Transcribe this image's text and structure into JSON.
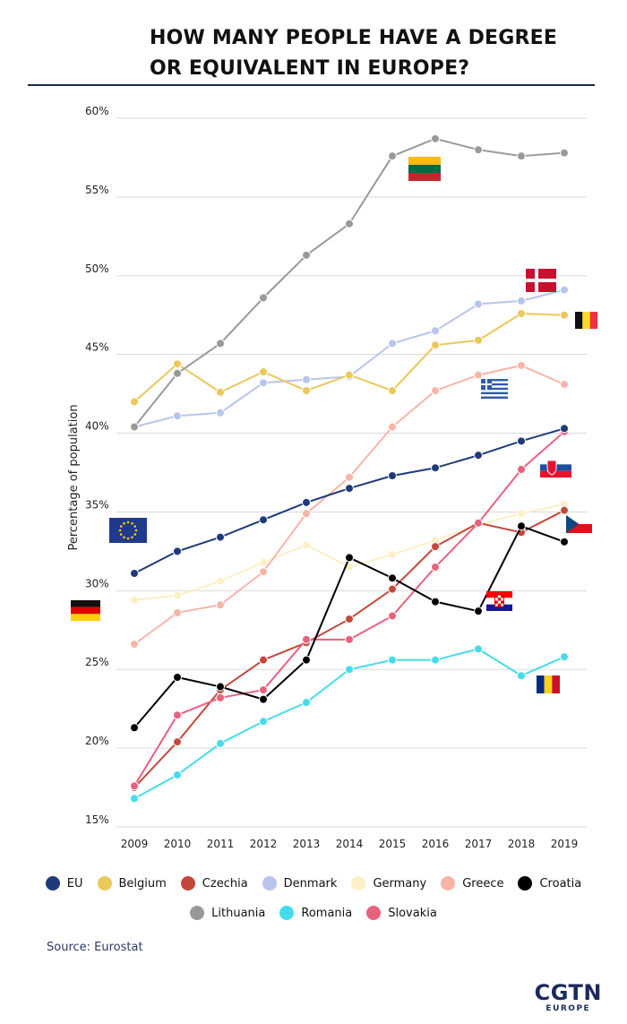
{
  "title_line1": "HOW MANY PEOPLE HAVE A DEGREE",
  "title_line2": "OR EQUIVALENT IN EUROPE?",
  "source": "Source: Eurostat",
  "logo": {
    "main": "CGTN",
    "sub": "EUROPE"
  },
  "chart_data": {
    "type": "line",
    "title": "HOW MANY PEOPLE HAVE A DEGREE OR EQUIVALENT IN EUROPE?",
    "xlabel": "",
    "ylabel": "Percentage of population",
    "x": [
      "2009",
      "2010",
      "2011",
      "2012",
      "2013",
      "2014",
      "2015",
      "2016",
      "2017",
      "2018",
      "2019"
    ],
    "ylim": [
      15,
      60
    ],
    "yticks": [
      "15%",
      "20%",
      "25%",
      "30%",
      "35%",
      "40%",
      "45%",
      "50%",
      "55%",
      "60%"
    ],
    "grid": true,
    "legend_position": "bottom",
    "series": [
      {
        "name": "EU",
        "color": "#1f3a7a",
        "flag": "eu-flag",
        "values": [
          31.1,
          32.5,
          33.4,
          34.5,
          35.6,
          36.5,
          37.3,
          37.8,
          38.6,
          39.5,
          40.3
        ]
      },
      {
        "name": "Belgium",
        "color": "#eac85a",
        "flag": "belgium-flag",
        "values": [
          42.0,
          44.4,
          42.6,
          43.9,
          42.7,
          43.7,
          42.7,
          45.6,
          45.9,
          47.6,
          47.5
        ]
      },
      {
        "name": "Czechia",
        "color": "#c4483a",
        "flag": "czechia-flag",
        "values": [
          17.5,
          20.4,
          23.7,
          25.6,
          26.7,
          28.2,
          30.1,
          32.8,
          34.3,
          33.7,
          35.1
        ]
      },
      {
        "name": "Denmark",
        "color": "#b8c4ec",
        "flag": "denmark-flag",
        "values": [
          40.4,
          41.1,
          41.3,
          43.2,
          43.4,
          43.6,
          45.7,
          46.5,
          48.2,
          48.4,
          49.1
        ]
      },
      {
        "name": "Germany",
        "color": "#fdefc6",
        "flag": "germany-flag",
        "values": [
          29.4,
          29.7,
          30.6,
          31.8,
          32.9,
          31.5,
          32.3,
          33.2,
          34.2,
          34.9,
          35.5
        ]
      },
      {
        "name": "Greece",
        "color": "#f7b5a8",
        "flag": "greece-flag",
        "values": [
          26.6,
          28.6,
          29.1,
          31.2,
          34.9,
          37.2,
          40.4,
          42.7,
          43.7,
          44.3,
          43.1
        ]
      },
      {
        "name": "Croatia",
        "color": "#000000",
        "flag": "croatia-flag",
        "values": [
          21.3,
          24.5,
          23.9,
          23.1,
          25.6,
          32.1,
          30.8,
          29.3,
          28.7,
          34.1,
          33.1
        ]
      },
      {
        "name": "Lithuania",
        "color": "#999999",
        "flag": "lithuania-flag",
        "values": [
          40.4,
          43.8,
          45.7,
          48.6,
          51.3,
          53.3,
          57.6,
          58.7,
          58.0,
          57.6,
          57.8
        ]
      },
      {
        "name": "Romania",
        "color": "#45dcea",
        "flag": "romania-flag",
        "values": [
          16.8,
          18.3,
          20.3,
          21.7,
          22.9,
          25.0,
          25.6,
          25.6,
          26.3,
          24.6,
          25.8
        ]
      },
      {
        "name": "Slovakia",
        "color": "#e8627e",
        "flag": "slovakia-flag",
        "values": [
          17.6,
          22.1,
          23.2,
          23.7,
          26.9,
          26.9,
          28.4,
          31.5,
          34.3,
          37.7,
          40.1
        ]
      }
    ]
  }
}
